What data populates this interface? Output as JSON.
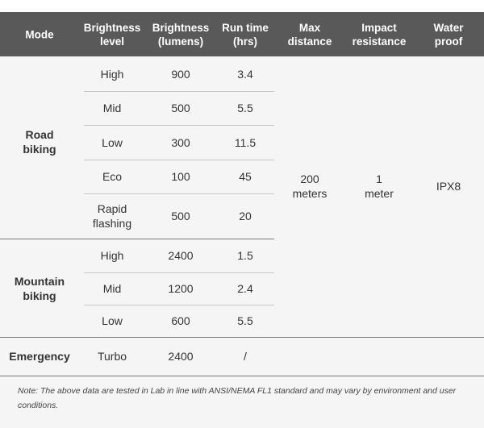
{
  "header": [
    [
      "Mode"
    ],
    [
      "Brightness",
      "level"
    ],
    [
      "Brightness",
      "(lumens)"
    ],
    [
      "Run time",
      "(hrs)"
    ],
    [
      "Max",
      "distance"
    ],
    [
      "Impact",
      "resistance"
    ],
    [
      "Water",
      "proof"
    ]
  ],
  "groups": [
    {
      "mode": [
        "Road",
        "biking"
      ],
      "rows": [
        {
          "level": [
            "High"
          ],
          "lumens": 900,
          "runtime": 3.4
        },
        {
          "level": [
            "Mid"
          ],
          "lumens": 500,
          "runtime": 5.5
        },
        {
          "level": [
            "Low"
          ],
          "lumens": 300,
          "runtime": 11.5
        },
        {
          "level": [
            "Eco"
          ],
          "lumens": 100,
          "runtime": 45
        },
        {
          "level": [
            "Rapid",
            "flashing"
          ],
          "lumens": 500,
          "runtime": 20
        }
      ]
    },
    {
      "mode": [
        "Mountain",
        "biking"
      ],
      "rows": [
        {
          "level": [
            "High"
          ],
          "lumens": 2400,
          "runtime": 1.5
        },
        {
          "level": [
            "Mid"
          ],
          "lumens": 1200,
          "runtime": 2.4
        },
        {
          "level": [
            "Low"
          ],
          "lumens": 600,
          "runtime": 5.5
        }
      ]
    },
    {
      "mode": [
        "Emergency"
      ],
      "rows": [
        {
          "level": [
            "Turbo"
          ],
          "lumens": 2400,
          "runtime": "/"
        }
      ]
    }
  ],
  "shared": {
    "max_distance": [
      "200",
      "meters"
    ],
    "impact_resistance": [
      "1",
      "meter"
    ],
    "waterproof": [
      "IPX8"
    ]
  },
  "note": "Note: The above data are tested in Lab in line with ANSI/NEMA FL1 standard and may vary by environment and user conditions."
}
